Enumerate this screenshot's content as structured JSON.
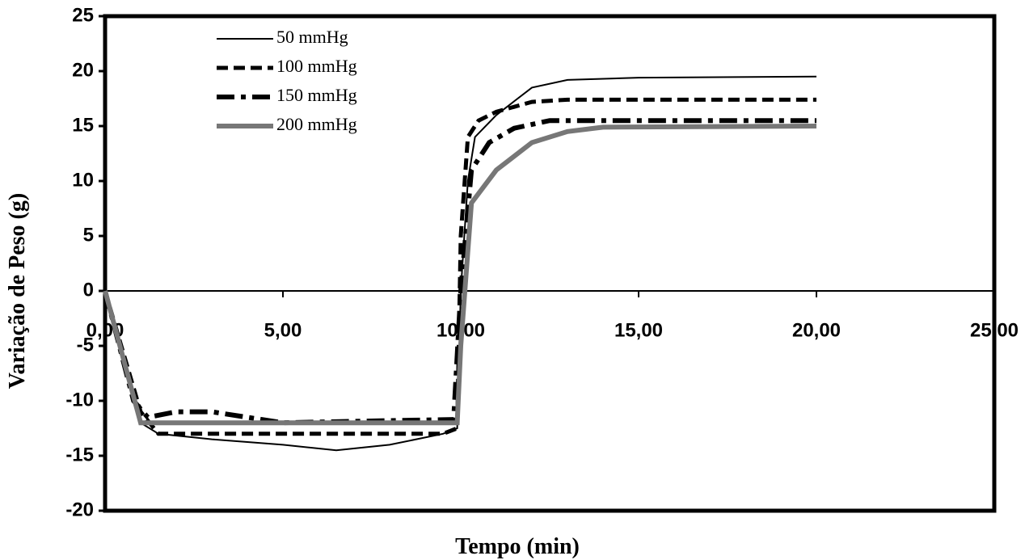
{
  "chart_data": {
    "type": "line",
    "xlabel": "Tempo (min)",
    "ylabel": "Variação de Peso (g)",
    "xlim": [
      0,
      25
    ],
    "xticks": [
      {
        "value": 0,
        "label": "0,00"
      },
      {
        "value": 5,
        "label": "5,00"
      },
      {
        "value": 10,
        "label": "10,00"
      },
      {
        "value": 15,
        "label": "15,00"
      },
      {
        "value": 20,
        "label": "20,00"
      },
      {
        "value": 25,
        "label": "25,00"
      }
    ],
    "ylim": [
      -20,
      25
    ],
    "yticks": [
      25,
      20,
      15,
      10,
      5,
      0,
      -5,
      -10,
      -15,
      -20
    ],
    "legend": "upper left",
    "series": [
      {
        "name": "50 mmHg",
        "color": "#000000",
        "dash": "solid",
        "width": 2,
        "x": [
          0,
          1.0,
          1.5,
          3,
          5,
          6.5,
          8,
          9.5,
          9.9,
          10.0,
          10.2,
          10.4,
          11,
          12,
          13,
          15,
          20
        ],
        "values": [
          0,
          -12,
          -13,
          -13.5,
          -14,
          -14.5,
          -14,
          -13,
          -12.5,
          0,
          10,
          14,
          16,
          18.5,
          19.2,
          19.4,
          19.5
        ]
      },
      {
        "name": "100 mmHg",
        "color": "#000000",
        "dash": "dashed",
        "width": 5,
        "x": [
          0,
          1.0,
          1.5,
          3,
          5,
          8,
          9.5,
          9.9,
          10.0,
          10.2,
          10.5,
          11,
          12,
          13,
          20
        ],
        "values": [
          0,
          -11,
          -13,
          -13,
          -13,
          -13,
          -13,
          -12.5,
          5,
          14,
          15.5,
          16.3,
          17.2,
          17.4,
          17.4
        ]
      },
      {
        "name": "150 mmHg",
        "color": "#000000",
        "dash": "dashdot",
        "width": 6,
        "x": [
          0,
          0.8,
          1.2,
          2,
          3,
          4,
          5,
          8,
          9.8,
          10.0,
          10.3,
          10.8,
          11.5,
          12.5,
          20
        ],
        "values": [
          0,
          -10,
          -11.5,
          -11,
          -11,
          -11.5,
          -12,
          -11.8,
          -11.7,
          0,
          11,
          13.5,
          14.8,
          15.5,
          15.5
        ]
      },
      {
        "name": "200 mmHg",
        "color": "#777777",
        "dash": "solid",
        "width": 6,
        "x": [
          0,
          1.0,
          2,
          5,
          9.9,
          10.0,
          10.3,
          11,
          12,
          13,
          14,
          20
        ],
        "values": [
          0,
          -12,
          -12,
          -12,
          -12,
          -5,
          8,
          11,
          13.5,
          14.5,
          14.9,
          15
        ]
      }
    ]
  }
}
